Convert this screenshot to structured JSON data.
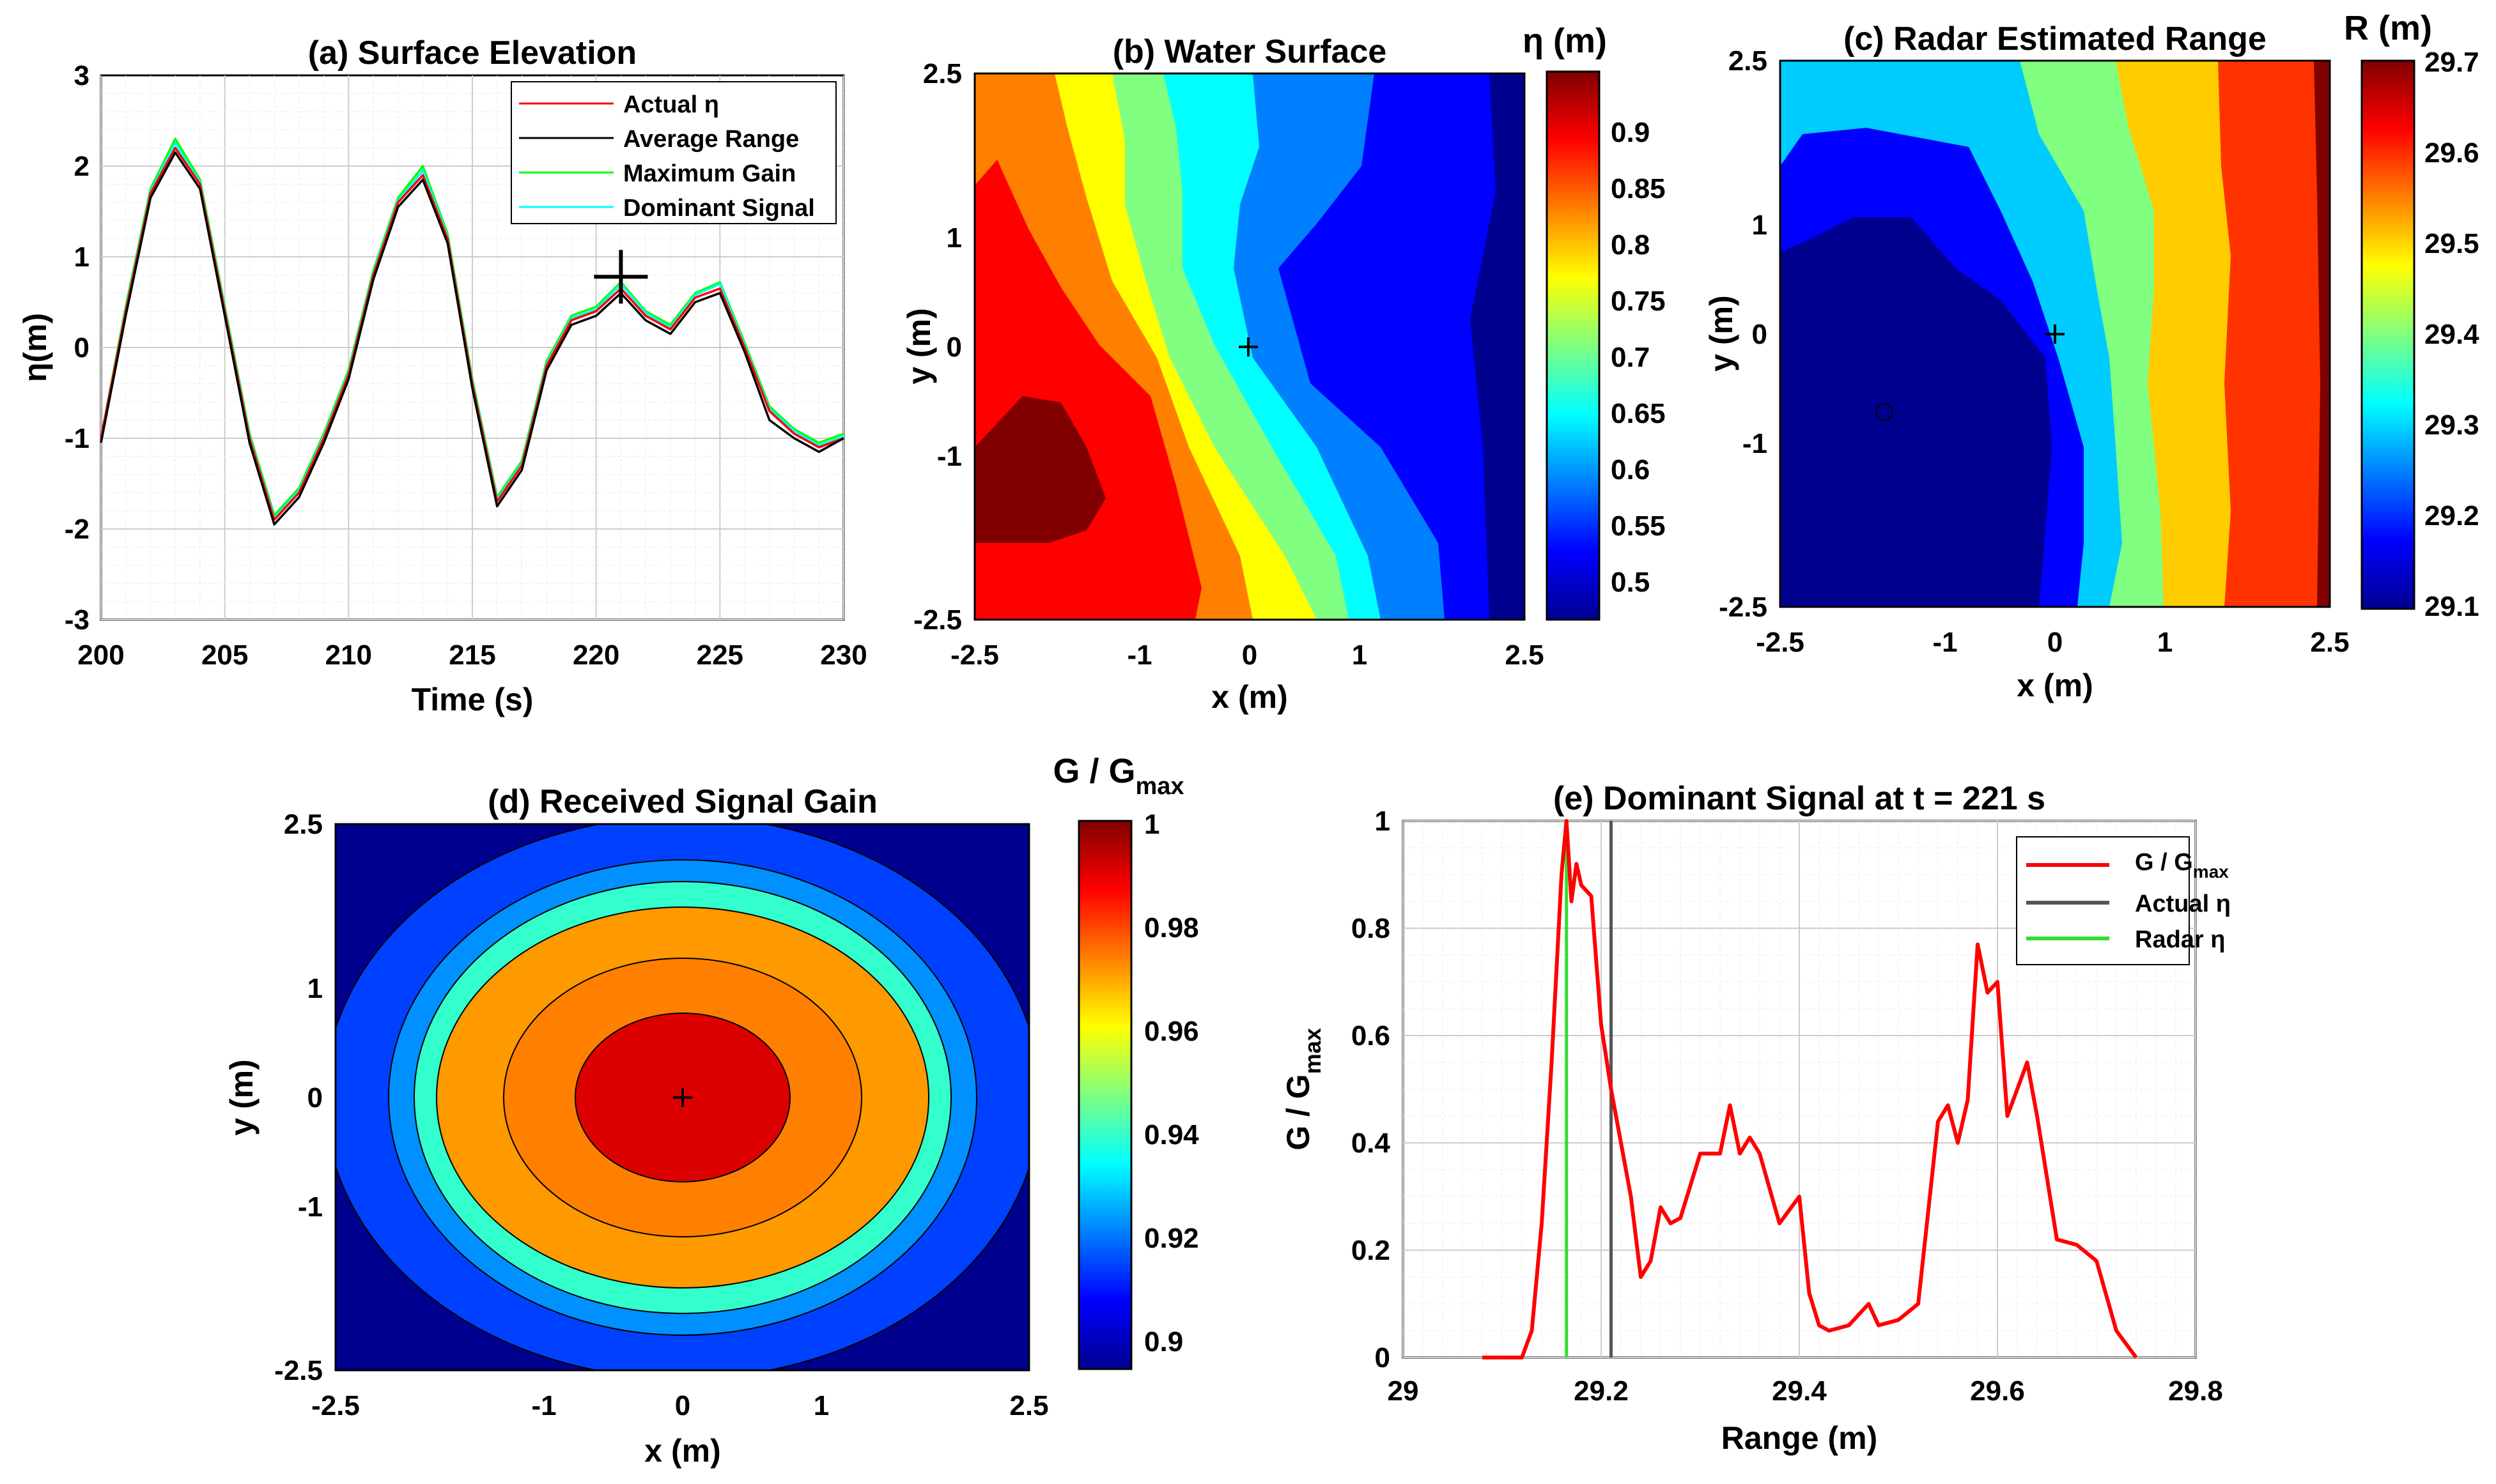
{
  "colors": {
    "actual": "#ff0000",
    "average": "#000000",
    "maximum": "#00ff00",
    "dominant": "#00ffff",
    "signal_red": "#ff0000",
    "actual_eta_line": "#555555",
    "radar_eta_line": "#33dd33",
    "jet": [
      "#00008f",
      "#0000ff",
      "#0080ff",
      "#00ffff",
      "#80ff80",
      "#ffff00",
      "#ff8000",
      "#ff0000",
      "#800000"
    ]
  },
  "chart_data": [
    {
      "id": "a",
      "type": "line",
      "title": "(a) Surface Elevation",
      "xlabel": "Time (s)",
      "ylabel": "η(m)",
      "xlim": [
        200,
        230
      ],
      "ylim": [
        -3,
        3
      ],
      "xticks": [
        "200",
        "205",
        "210",
        "215",
        "220",
        "225",
        "230"
      ],
      "yticks": [
        "3",
        "2",
        "1",
        "0",
        "-1",
        "-2",
        "-3"
      ],
      "grid": true,
      "legend_position": "top-right",
      "marker": {
        "x": 221,
        "y": 0.78
      },
      "series": [
        {
          "name": "Actual η",
          "color": "#ff0000",
          "x": [
            200,
            201,
            202,
            203,
            204,
            205,
            206,
            207,
            208,
            209,
            210,
            211,
            212,
            213,
            214,
            215,
            216,
            217,
            218,
            219,
            220,
            221,
            222,
            223,
            224,
            225,
            226,
            227,
            228,
            229,
            230
          ],
          "y": [
            -1.0,
            0.4,
            1.7,
            2.2,
            1.8,
            0.4,
            -1.0,
            -1.9,
            -1.6,
            -1.0,
            -0.3,
            0.8,
            1.6,
            1.9,
            1.2,
            -0.4,
            -1.7,
            -1.3,
            -0.2,
            0.3,
            0.4,
            0.65,
            0.35,
            0.2,
            0.55,
            0.65,
            0.0,
            -0.7,
            -0.95,
            -1.1,
            -1.0
          ]
        },
        {
          "name": "Average Range",
          "color": "#000000",
          "x": [
            200,
            201,
            202,
            203,
            204,
            205,
            206,
            207,
            208,
            209,
            210,
            211,
            212,
            213,
            214,
            215,
            216,
            217,
            218,
            219,
            220,
            221,
            222,
            223,
            224,
            225,
            226,
            227,
            228,
            229,
            230
          ],
          "y": [
            -1.05,
            0.35,
            1.65,
            2.15,
            1.75,
            0.35,
            -1.05,
            -1.95,
            -1.65,
            -1.05,
            -0.35,
            0.75,
            1.55,
            1.85,
            1.15,
            -0.45,
            -1.75,
            -1.35,
            -0.25,
            0.25,
            0.35,
            0.6,
            0.3,
            0.15,
            0.5,
            0.6,
            -0.05,
            -0.8,
            -1.0,
            -1.15,
            -1.0
          ]
        },
        {
          "name": "Maximum Gain",
          "color": "#00ff00",
          "x": [
            200,
            201,
            202,
            203,
            204,
            205,
            206,
            207,
            208,
            209,
            210,
            211,
            212,
            213,
            214,
            215,
            216,
            217,
            218,
            219,
            220,
            221,
            222,
            223,
            224,
            225,
            226,
            227,
            228,
            229,
            230
          ],
          "y": [
            -1.0,
            0.45,
            1.75,
            2.3,
            1.85,
            0.45,
            -0.95,
            -1.85,
            -1.55,
            -0.95,
            -0.25,
            0.85,
            1.65,
            2.0,
            1.25,
            -0.35,
            -1.65,
            -1.25,
            -0.15,
            0.35,
            0.45,
            0.72,
            0.4,
            0.25,
            0.6,
            0.72,
            0.05,
            -0.65,
            -0.9,
            -1.05,
            -0.95
          ]
        },
        {
          "name": "Dominant Signal",
          "color": "#00ffff",
          "x": [
            200,
            201,
            202,
            203,
            204,
            205,
            206,
            207,
            208,
            209,
            210,
            211,
            212,
            213,
            214,
            215,
            216,
            217,
            218,
            219,
            220,
            221,
            222,
            223,
            224,
            225,
            226,
            227,
            228,
            229,
            230
          ],
          "y": [
            -1.0,
            0.42,
            1.72,
            2.25,
            1.82,
            0.42,
            -0.98,
            -1.88,
            -1.58,
            -0.98,
            -0.28,
            0.82,
            1.62,
            1.95,
            1.22,
            -0.38,
            -1.68,
            -1.28,
            -0.18,
            0.32,
            0.42,
            0.7,
            0.38,
            0.22,
            0.58,
            0.7,
            0.02,
            -0.68,
            -0.92,
            -1.08,
            -0.98
          ]
        }
      ]
    },
    {
      "id": "b",
      "type": "heatmap",
      "title": "(b) Water Surface",
      "xlabel": "x (m)",
      "ylabel": "y (m)",
      "xlim": [
        -2.5,
        2.5
      ],
      "ylim": [
        -2.5,
        2.5
      ],
      "xticks": [
        "-2.5",
        "-1",
        "0",
        "1",
        "2.5"
      ],
      "yticks": [
        "2.5",
        "1",
        "0",
        "-1",
        "-2.5"
      ],
      "marker": {
        "x": 0,
        "y": 0
      },
      "colorbar": {
        "label": "η (m)",
        "range": [
          0.47,
          0.98
        ],
        "ticks": [
          "0.9",
          "0.85",
          "0.8",
          "0.75",
          "0.7",
          "0.65",
          "0.6",
          "0.55",
          "0.5"
        ]
      },
      "field": {
        "description_levels": [
          0.5,
          0.55,
          0.6,
          0.65,
          0.7,
          0.75,
          0.8,
          0.85,
          0.9,
          0.95
        ]
      }
    },
    {
      "id": "c",
      "type": "heatmap",
      "title": "(c) Radar Estimated Range",
      "xlabel": "x (m)",
      "ylabel": "y (m)",
      "xlim": [
        -2.5,
        2.5
      ],
      "ylim": [
        -2.5,
        2.5
      ],
      "xticks": [
        "-2.5",
        "-1",
        "0",
        "1",
        "2.5"
      ],
      "yticks": [
        "2.5",
        "1",
        "0",
        "-1",
        "-2.5"
      ],
      "marker": {
        "x": 0,
        "y": 0
      },
      "colorbar": {
        "label": "R (m)",
        "range": [
          29.1,
          29.7
        ],
        "ticks": [
          "29.7",
          "29.6",
          "29.5",
          "29.4",
          "29.3",
          "29.2",
          "29.1"
        ]
      }
    },
    {
      "id": "d",
      "type": "heatmap",
      "title": "(d) Received Signal Gain",
      "xlabel": "x (m)",
      "ylabel": "y (m)",
      "xlim": [
        -2.5,
        2.5
      ],
      "ylim": [
        -2.5,
        2.5
      ],
      "xticks": [
        "-2.5",
        "-1",
        "0",
        "1",
        "2.5"
      ],
      "yticks": [
        "2.5",
        "1",
        "0",
        "-1",
        "-2.5"
      ],
      "marker": {
        "x": 0,
        "y": 0
      },
      "colorbar": {
        "label": "G / G",
        "label_sub": "max",
        "range": [
          0.895,
          1.0
        ],
        "ticks": [
          "1",
          "0.98",
          "0.96",
          "0.94",
          "0.92",
          "0.9"
        ]
      },
      "contour_levels": [
        0.99,
        0.97,
        0.955,
        0.935,
        0.915
      ]
    },
    {
      "id": "e",
      "type": "line",
      "title": "(e) Dominant Signal at t = 221 s",
      "xlabel": "Range (m)",
      "ylabel": "G / G",
      "ylabel_sub": "max",
      "xlim": [
        29,
        29.8
      ],
      "ylim": [
        0,
        1
      ],
      "xticks": [
        "29",
        "29.2",
        "29.4",
        "29.6",
        "29.8"
      ],
      "yticks": [
        "1",
        "0.8",
        "0.6",
        "0.4",
        "0.2",
        "0"
      ],
      "grid": true,
      "legend_position": "top-right",
      "vlines": [
        {
          "name": "Actual η",
          "x": 29.21,
          "color": "#555555"
        },
        {
          "name": "Radar η",
          "x": 29.165,
          "color": "#33dd33"
        }
      ],
      "series": [
        {
          "name": "G / G",
          "name_sub": "max",
          "color": "#ff0000",
          "x": [
            29.08,
            29.12,
            29.13,
            29.14,
            29.15,
            29.16,
            29.165,
            29.17,
            29.175,
            29.18,
            29.19,
            29.2,
            29.21,
            29.22,
            29.23,
            29.24,
            29.25,
            29.26,
            29.27,
            29.28,
            29.3,
            29.32,
            29.33,
            29.34,
            29.35,
            29.36,
            29.38,
            29.4,
            29.41,
            29.42,
            29.43,
            29.45,
            29.47,
            29.48,
            29.5,
            29.52,
            29.54,
            29.55,
            29.56,
            29.57,
            29.58,
            29.59,
            29.6,
            29.61,
            29.63,
            29.64,
            29.66,
            29.68,
            29.7,
            29.72,
            29.74
          ],
          "y": [
            0,
            0,
            0.05,
            0.25,
            0.55,
            0.9,
            1.0,
            0.85,
            0.92,
            0.88,
            0.86,
            0.62,
            0.5,
            0.4,
            0.3,
            0.15,
            0.18,
            0.28,
            0.25,
            0.26,
            0.38,
            0.38,
            0.47,
            0.38,
            0.41,
            0.38,
            0.25,
            0.3,
            0.12,
            0.06,
            0.05,
            0.06,
            0.1,
            0.06,
            0.07,
            0.1,
            0.44,
            0.47,
            0.4,
            0.48,
            0.77,
            0.68,
            0.7,
            0.45,
            0.55,
            0.45,
            0.22,
            0.21,
            0.18,
            0.05,
            0
          ]
        }
      ]
    }
  ]
}
